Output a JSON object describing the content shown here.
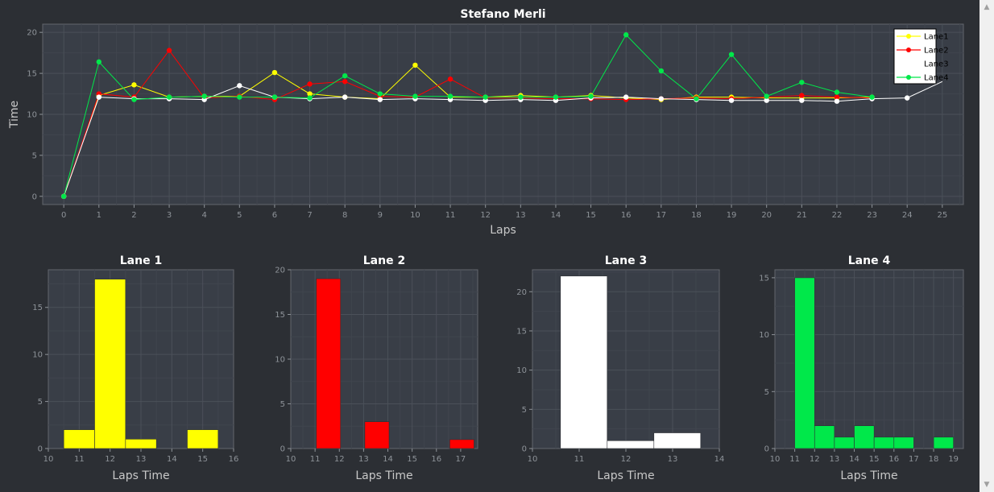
{
  "chart_data": [
    {
      "type": "line",
      "title": "Stefano Merli",
      "xlabel": "Laps",
      "ylabel": "Time",
      "xlim": [
        -0.6,
        25.6
      ],
      "ylim": [
        -1,
        21
      ],
      "xticks": [
        0,
        1,
        2,
        3,
        4,
        5,
        6,
        7,
        8,
        9,
        10,
        11,
        12,
        13,
        14,
        15,
        16,
        17,
        18,
        19,
        20,
        21,
        22,
        23,
        24,
        25
      ],
      "yticks": [
        0,
        5,
        10,
        15,
        20
      ],
      "grid": true,
      "legend": "top-right",
      "series": [
        {
          "name": "Lane1",
          "color": "#ffff00",
          "x": [
            0,
            1,
            2,
            3,
            4,
            5,
            6,
            7,
            8,
            9,
            10,
            11,
            12,
            13,
            14,
            15,
            16,
            17,
            18,
            19,
            20,
            21,
            22,
            23
          ],
          "values": [
            0,
            12.3,
            13.6,
            12.1,
            12.2,
            12.2,
            15.1,
            12.5,
            12.1,
            11.9,
            16.0,
            12.1,
            12.1,
            12.3,
            12.1,
            12.3,
            12.0,
            11.8,
            12.1,
            12.1,
            12.0,
            12.0,
            12.0,
            12.1
          ]
        },
        {
          "name": "Lane2",
          "color": "#ff0000",
          "x": [
            0,
            1,
            2,
            3,
            4,
            5,
            6,
            7,
            8,
            9,
            10,
            11,
            12,
            13,
            14,
            15,
            16,
            17,
            18,
            19,
            20,
            21,
            22,
            23
          ],
          "values": [
            0,
            12.5,
            12.1,
            17.8,
            12.0,
            12.2,
            11.8,
            13.7,
            14.0,
            12.2,
            12.1,
            14.3,
            12.0,
            12.0,
            11.9,
            11.9,
            11.8,
            11.9,
            12.0,
            11.9,
            12.1,
            12.3,
            12.1,
            12.0
          ]
        },
        {
          "name": "Lane3",
          "color": "#ffffff",
          "x": [
            0,
            1,
            2,
            3,
            4,
            5,
            6,
            7,
            8,
            9,
            10,
            11,
            12,
            13,
            14,
            15,
            16,
            17,
            18,
            19,
            20,
            21,
            22,
            23,
            24,
            25
          ],
          "values": [
            0,
            12.1,
            11.9,
            11.9,
            11.8,
            13.5,
            12.1,
            11.9,
            12.1,
            11.8,
            11.9,
            11.8,
            11.7,
            11.8,
            11.7,
            12.0,
            12.1,
            11.9,
            11.8,
            11.7,
            11.7,
            11.7,
            11.6,
            11.9,
            12.0,
            14.0
          ]
        },
        {
          "name": "Lane4",
          "color": "#00e84a",
          "x": [
            0,
            1,
            2,
            3,
            4,
            5,
            6,
            7,
            8,
            9,
            10,
            11,
            12,
            13,
            14,
            15,
            16,
            17,
            18,
            19,
            20,
            21,
            22,
            23
          ],
          "values": [
            0,
            16.4,
            11.8,
            12.1,
            12.2,
            12.1,
            12.1,
            12.0,
            14.7,
            12.5,
            12.2,
            12.2,
            12.1,
            12.1,
            12.1,
            12.2,
            19.7,
            15.3,
            11.9,
            17.3,
            12.2,
            13.9,
            12.7,
            12.1
          ]
        }
      ]
    },
    {
      "type": "bar",
      "title": "Lane 1",
      "xlabel": "Laps Time",
      "color": "#ffff00",
      "xlim": [
        10,
        16
      ],
      "ylim": [
        0,
        19
      ],
      "xticks": [
        10,
        11,
        12,
        13,
        14,
        15,
        16
      ],
      "yticks": [
        0,
        5,
        10,
        15
      ],
      "bins": [
        [
          10.5,
          11.5,
          2
        ],
        [
          11.5,
          12.5,
          18
        ],
        [
          12.5,
          13.5,
          1
        ],
        [
          14.5,
          15.5,
          2
        ]
      ]
    },
    {
      "type": "bar",
      "title": "Lane 2",
      "xlabel": "Laps Time",
      "color": "#ff0000",
      "xlim": [
        10,
        17.7
      ],
      "ylim": [
        0,
        20
      ],
      "xticks": [
        10,
        11,
        12,
        13,
        14,
        15,
        16,
        17
      ],
      "yticks": [
        0,
        5,
        10,
        15,
        20
      ],
      "bins": [
        [
          11.05,
          12.05,
          19
        ],
        [
          13.05,
          14.05,
          3
        ],
        [
          16.55,
          17.55,
          1
        ]
      ]
    },
    {
      "type": "bar",
      "title": "Lane 3",
      "xlabel": "Laps Time",
      "color": "#ffffff",
      "xlim": [
        10,
        14
      ],
      "ylim": [
        0,
        22.8
      ],
      "xticks": [
        10,
        11,
        12,
        13,
        14
      ],
      "yticks": [
        0,
        5,
        10,
        15,
        20
      ],
      "bins": [
        [
          10.6,
          11.6,
          22
        ],
        [
          11.6,
          12.6,
          1
        ],
        [
          12.6,
          13.6,
          2
        ]
      ]
    },
    {
      "type": "bar",
      "title": "Lane 4",
      "xlabel": "Laps Time",
      "color": "#00e84a",
      "xlim": [
        10,
        19.5
      ],
      "ylim": [
        0,
        15.7
      ],
      "xticks": [
        10,
        11,
        12,
        13,
        14,
        15,
        16,
        17,
        18,
        19
      ],
      "yticks": [
        0,
        5,
        10,
        15
      ],
      "bins": [
        [
          11.0,
          12.0,
          15
        ],
        [
          12.0,
          13.0,
          2
        ],
        [
          13.0,
          14.0,
          1
        ],
        [
          14.0,
          15.0,
          2
        ],
        [
          15.0,
          16.0,
          1
        ],
        [
          16.0,
          17.0,
          1
        ],
        [
          18.0,
          19.0,
          1
        ]
      ]
    }
  ],
  "scrollbar": {
    "up": "▲",
    "down": "▼"
  }
}
